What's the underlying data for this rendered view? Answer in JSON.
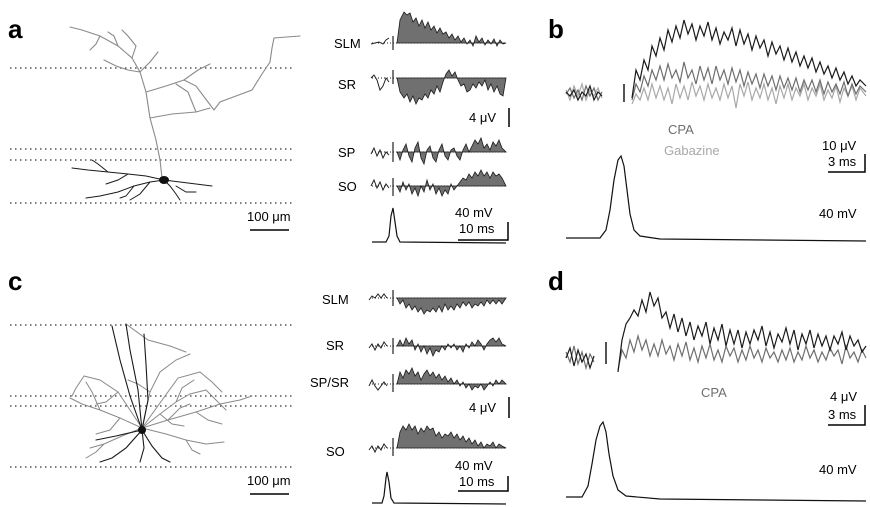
{
  "panels": {
    "a": {
      "label": "a",
      "layers": [
        "SLM",
        "SR",
        "SP",
        "SO"
      ],
      "scale_amp": "4 μV",
      "scale_spike": "40 mV",
      "scale_time": "10 ms",
      "morph_scale": "100 μm"
    },
    "b": {
      "label": "b",
      "legend": [
        "CPA",
        "Gabazine"
      ],
      "scale_amp": "10 μV",
      "scale_time": "3 ms",
      "scale_spike": "40 mV"
    },
    "c": {
      "label": "c",
      "layers": [
        "SLM",
        "SR",
        "SP/SR",
        "SO"
      ],
      "scale_amp": "4 μV",
      "scale_spike": "40 mV",
      "scale_time": "10 ms",
      "morph_scale": "100 μm"
    },
    "d": {
      "label": "d",
      "legend": [
        "CPA"
      ],
      "scale_amp": "4 μV",
      "scale_time": "3 ms",
      "scale_spike": "40 mV"
    }
  },
  "colors": {
    "trace_black": "#1a1a1a",
    "trace_dark_gray": "#6e6e6e",
    "trace_light_gray": "#a8a8a8",
    "fill_gray": "#707070",
    "neuron_gray": "#8a8a8a"
  }
}
